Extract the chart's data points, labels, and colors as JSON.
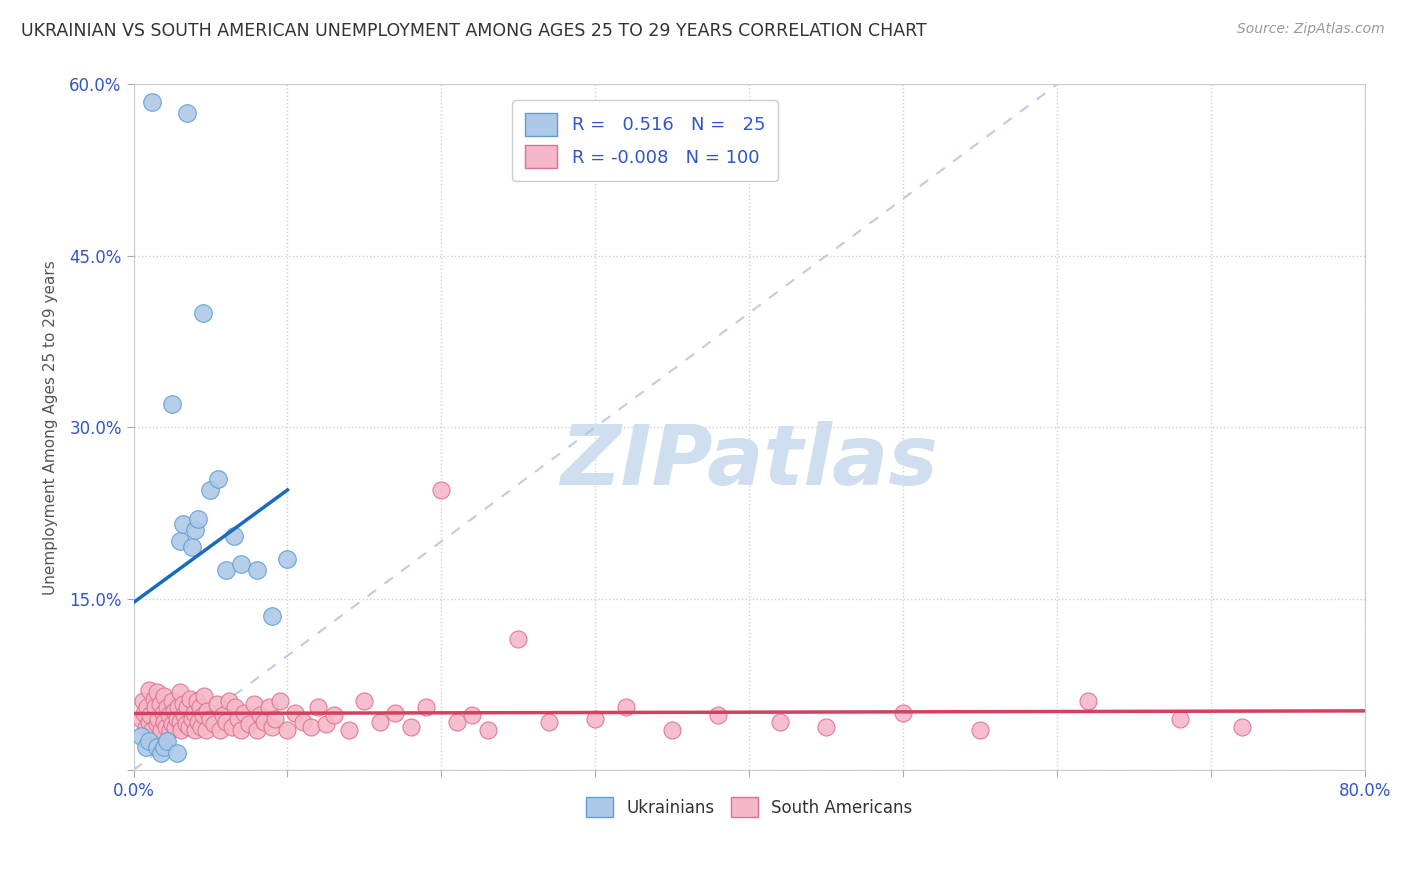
{
  "title": "UKRAINIAN VS SOUTH AMERICAN UNEMPLOYMENT AMONG AGES 25 TO 29 YEARS CORRELATION CHART",
  "source_text": "Source: ZipAtlas.com",
  "ylabel": "Unemployment Among Ages 25 to 29 years",
  "xlim": [
    0.0,
    0.8
  ],
  "ylim": [
    0.0,
    0.6
  ],
  "r_ukrainian": 0.516,
  "n_ukrainian": 25,
  "r_south_american": -0.008,
  "n_south_american": 100,
  "blue_scatter_color": "#aec9e8",
  "blue_edge_color": "#5a9fd4",
  "blue_line_color": "#1a6bbf",
  "pink_scatter_color": "#f5b8c8",
  "pink_edge_color": "#e07090",
  "pink_line_color": "#d44060",
  "watermark_text": "ZIPatlas",
  "watermark_color": "#d0dff0",
  "grid_color": "#d0d0d0",
  "background_color": "#ffffff",
  "tick_color": "#3355cc",
  "ukrainians_x": [
    0.005,
    0.008,
    0.01,
    0.012,
    0.015,
    0.018,
    0.02,
    0.022,
    0.025,
    0.028,
    0.03,
    0.032,
    0.035,
    0.038,
    0.04,
    0.042,
    0.045,
    0.05,
    0.055,
    0.06,
    0.065,
    0.07,
    0.08,
    0.09,
    0.1
  ],
  "ukrainians_y": [
    0.03,
    0.02,
    0.025,
    0.585,
    0.02,
    0.015,
    0.02,
    0.025,
    0.32,
    0.015,
    0.2,
    0.215,
    0.575,
    0.195,
    0.21,
    0.22,
    0.4,
    0.245,
    0.255,
    0.175,
    0.205,
    0.18,
    0.175,
    0.135,
    0.185
  ],
  "south_americans_x": [
    0.005,
    0.006,
    0.007,
    0.008,
    0.009,
    0.01,
    0.01,
    0.011,
    0.012,
    0.013,
    0.014,
    0.015,
    0.015,
    0.016,
    0.017,
    0.018,
    0.019,
    0.02,
    0.02,
    0.021,
    0.022,
    0.023,
    0.024,
    0.025,
    0.025,
    0.026,
    0.027,
    0.028,
    0.029,
    0.03,
    0.03,
    0.031,
    0.032,
    0.033,
    0.034,
    0.035,
    0.036,
    0.037,
    0.038,
    0.039,
    0.04,
    0.041,
    0.042,
    0.043,
    0.044,
    0.045,
    0.046,
    0.047,
    0.048,
    0.05,
    0.052,
    0.054,
    0.056,
    0.058,
    0.06,
    0.062,
    0.064,
    0.066,
    0.068,
    0.07,
    0.072,
    0.075,
    0.078,
    0.08,
    0.082,
    0.085,
    0.088,
    0.09,
    0.092,
    0.095,
    0.1,
    0.105,
    0.11,
    0.115,
    0.12,
    0.125,
    0.13,
    0.14,
    0.15,
    0.16,
    0.17,
    0.18,
    0.19,
    0.2,
    0.21,
    0.22,
    0.23,
    0.25,
    0.27,
    0.3,
    0.32,
    0.35,
    0.38,
    0.42,
    0.45,
    0.5,
    0.55,
    0.62,
    0.68,
    0.72
  ],
  "south_americans_y": [
    0.045,
    0.06,
    0.05,
    0.038,
    0.055,
    0.042,
    0.07,
    0.048,
    0.035,
    0.062,
    0.055,
    0.04,
    0.068,
    0.045,
    0.058,
    0.035,
    0.05,
    0.042,
    0.065,
    0.038,
    0.055,
    0.048,
    0.035,
    0.06,
    0.04,
    0.052,
    0.038,
    0.045,
    0.055,
    0.042,
    0.068,
    0.035,
    0.058,
    0.048,
    0.04,
    0.055,
    0.038,
    0.062,
    0.045,
    0.05,
    0.035,
    0.06,
    0.042,
    0.055,
    0.038,
    0.048,
    0.065,
    0.035,
    0.052,
    0.045,
    0.04,
    0.058,
    0.035,
    0.048,
    0.042,
    0.06,
    0.038,
    0.055,
    0.045,
    0.035,
    0.05,
    0.04,
    0.058,
    0.035,
    0.048,
    0.042,
    0.055,
    0.038,
    0.045,
    0.06,
    0.035,
    0.05,
    0.042,
    0.038,
    0.055,
    0.04,
    0.048,
    0.035,
    0.06,
    0.042,
    0.05,
    0.038,
    0.055,
    0.245,
    0.042,
    0.048,
    0.035,
    0.115,
    0.042,
    0.045,
    0.055,
    0.035,
    0.048,
    0.042,
    0.038,
    0.05,
    0.035,
    0.06,
    0.045,
    0.038
  ]
}
